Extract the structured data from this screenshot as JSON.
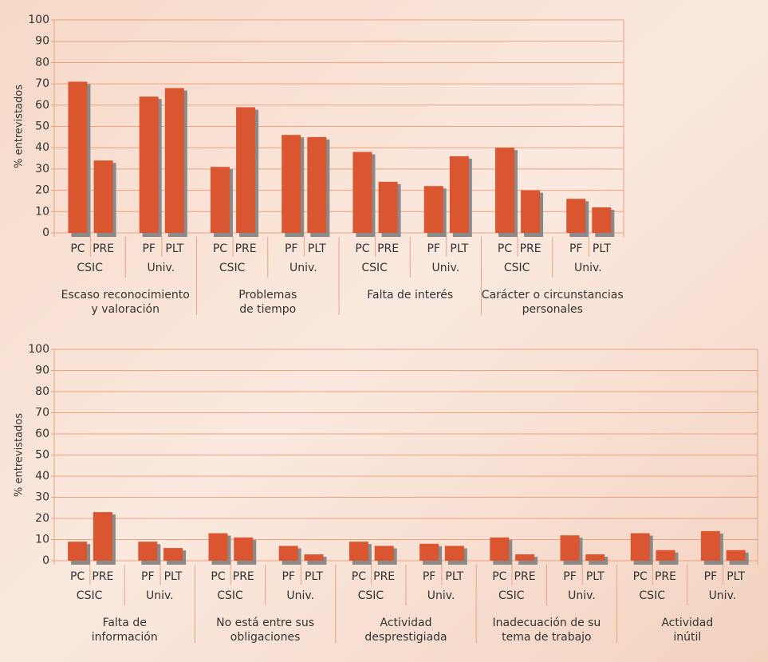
{
  "chart_data": [
    {
      "type": "bar",
      "ylabel": "% entrevistados",
      "ylim": [
        0,
        100
      ],
      "yticks": [
        0,
        10,
        20,
        30,
        40,
        50,
        60,
        70,
        80,
        90,
        100
      ],
      "grid": true,
      "color": "#d95631",
      "shadow_color": "#8a8a8a",
      "groups": [
        {
          "label": [
            "Escaso reconocimiento",
            "y valoración"
          ],
          "subgroups": [
            {
              "label": "CSIC",
              "categories": [
                "PC",
                "PRE"
              ],
              "values": [
                71,
                34
              ]
            },
            {
              "label": "Univ.",
              "categories": [
                "PF",
                "PLT"
              ],
              "values": [
                64,
                68
              ]
            }
          ]
        },
        {
          "label": [
            "Problemas",
            "de tiempo"
          ],
          "subgroups": [
            {
              "label": "CSIC",
              "categories": [
                "PC",
                "PRE"
              ],
              "values": [
                31,
                59
              ]
            },
            {
              "label": "Univ.",
              "categories": [
                "PF",
                "PLT"
              ],
              "values": [
                46,
                45
              ]
            }
          ]
        },
        {
          "label": [
            "Falta de interés"
          ],
          "subgroups": [
            {
              "label": "CSIC",
              "categories": [
                "PC",
                "PRE"
              ],
              "values": [
                38,
                24
              ]
            },
            {
              "label": "Univ.",
              "categories": [
                "PF",
                "PLT"
              ],
              "values": [
                22,
                36
              ]
            }
          ]
        },
        {
          "label": [
            "Carácter o circunstancias",
            "personales"
          ],
          "subgroups": [
            {
              "label": "CSIC",
              "categories": [
                "PC",
                "PRE"
              ],
              "values": [
                40,
                20
              ]
            },
            {
              "label": "Univ.",
              "categories": [
                "PF",
                "PLT"
              ],
              "values": [
                16,
                12
              ]
            }
          ]
        }
      ]
    },
    {
      "type": "bar",
      "ylabel": "% entrevistados",
      "ylim": [
        0,
        100
      ],
      "yticks": [
        0,
        10,
        20,
        30,
        40,
        50,
        60,
        70,
        80,
        90,
        100
      ],
      "grid": true,
      "color": "#d95631",
      "shadow_color": "#8a8a8a",
      "groups": [
        {
          "label": [
            "Falta de",
            "información"
          ],
          "subgroups": [
            {
              "label": "CSIC",
              "categories": [
                "PC",
                "PRE"
              ],
              "values": [
                9,
                23
              ]
            },
            {
              "label": "Univ.",
              "categories": [
                "PF",
                "PLT"
              ],
              "values": [
                9,
                6
              ]
            }
          ]
        },
        {
          "label": [
            "No está entre sus",
            "obligaciones"
          ],
          "subgroups": [
            {
              "label": "CSIC",
              "categories": [
                "PC",
                "PRE"
              ],
              "values": [
                13,
                11
              ]
            },
            {
              "label": "Univ.",
              "categories": [
                "PF",
                "PLT"
              ],
              "values": [
                7,
                3
              ]
            }
          ]
        },
        {
          "label": [
            "Actividad",
            "desprestigiada"
          ],
          "subgroups": [
            {
              "label": "CSIC",
              "categories": [
                "PC",
                "PRE"
              ],
              "values": [
                9,
                7
              ]
            },
            {
              "label": "Univ.",
              "categories": [
                "PF",
                "PLT"
              ],
              "values": [
                8,
                7
              ]
            }
          ]
        },
        {
          "label": [
            "Inadecuación de su",
            "tema de trabajo"
          ],
          "subgroups": [
            {
              "label": "CSIC",
              "categories": [
                "PC",
                "PRE"
              ],
              "values": [
                11,
                3
              ]
            },
            {
              "label": "Univ.",
              "categories": [
                "PF",
                "PLT"
              ],
              "values": [
                12,
                3
              ]
            }
          ]
        },
        {
          "label": [
            "Actividad",
            "inútil"
          ],
          "subgroups": [
            {
              "label": "CSIC",
              "categories": [
                "PC",
                "PRE"
              ],
              "values": [
                13,
                5
              ]
            },
            {
              "label": "Univ.",
              "categories": [
                "PF",
                "PLT"
              ],
              "values": [
                14,
                5
              ]
            }
          ]
        }
      ]
    }
  ]
}
